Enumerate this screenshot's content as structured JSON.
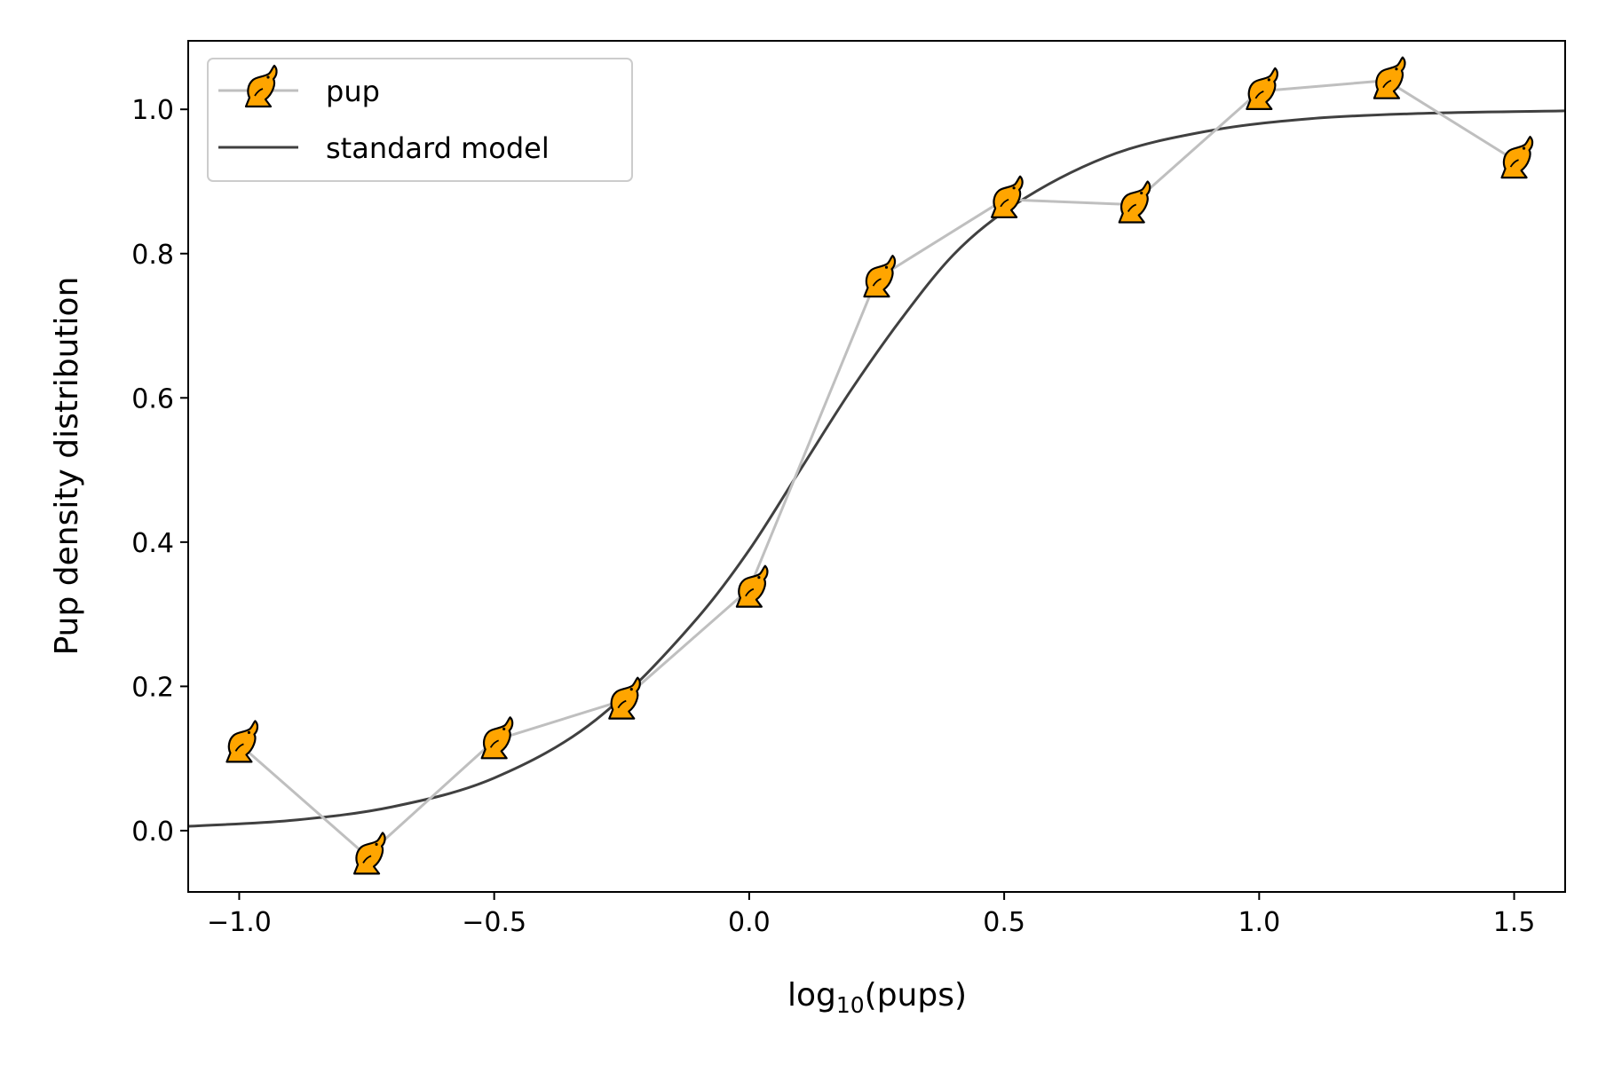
{
  "chart_data": {
    "type": "line",
    "xlabel": "log10(pups)",
    "xlabel_base": "log",
    "xlabel_sub": "10",
    "xlabel_tail": "(pups)",
    "ylabel": "Pup density distribution",
    "xlim": [
      -1.1,
      1.6
    ],
    "ylim": [
      -0.085,
      1.095
    ],
    "x_ticks": [
      -1.0,
      -0.5,
      0.0,
      0.5,
      1.0,
      1.5
    ],
    "x_tick_labels": [
      "−1.0",
      "−0.5",
      "0.0",
      "0.5",
      "1.0",
      "1.5"
    ],
    "y_ticks": [
      0.0,
      0.2,
      0.4,
      0.6,
      0.8,
      1.0
    ],
    "y_tick_labels": [
      "0.0",
      "0.2",
      "0.4",
      "0.6",
      "0.8",
      "1.0"
    ],
    "grid": false,
    "legend_position": "top-left",
    "series": [
      {
        "name": "pup",
        "style": "line-with-markers",
        "line_color": "#bfbfbf",
        "marker": "pup-icon",
        "marker_color": "#ffa500",
        "x": [
          -1.0,
          -0.75,
          -0.5,
          -0.25,
          0.0,
          0.25,
          0.5,
          0.75,
          1.0,
          1.25,
          1.5
        ],
        "y": [
          0.12,
          -0.035,
          0.125,
          0.18,
          0.335,
          0.765,
          0.875,
          0.868,
          1.025,
          1.04,
          0.93
        ]
      },
      {
        "name": "standard model",
        "style": "line",
        "line_color": "#404040",
        "model": "logistic",
        "x": [
          -1.1,
          -0.9,
          -0.7,
          -0.5,
          -0.3,
          -0.1,
          0.0,
          0.1,
          0.2,
          0.3,
          0.4,
          0.5,
          0.7,
          0.9,
          1.1,
          1.3,
          1.6
        ],
        "y": [
          0.006,
          0.014,
          0.033,
          0.073,
          0.154,
          0.296,
          0.389,
          0.5,
          0.611,
          0.711,
          0.798,
          0.858,
          0.934,
          0.97,
          0.987,
          0.994,
          0.998
        ]
      }
    ]
  }
}
